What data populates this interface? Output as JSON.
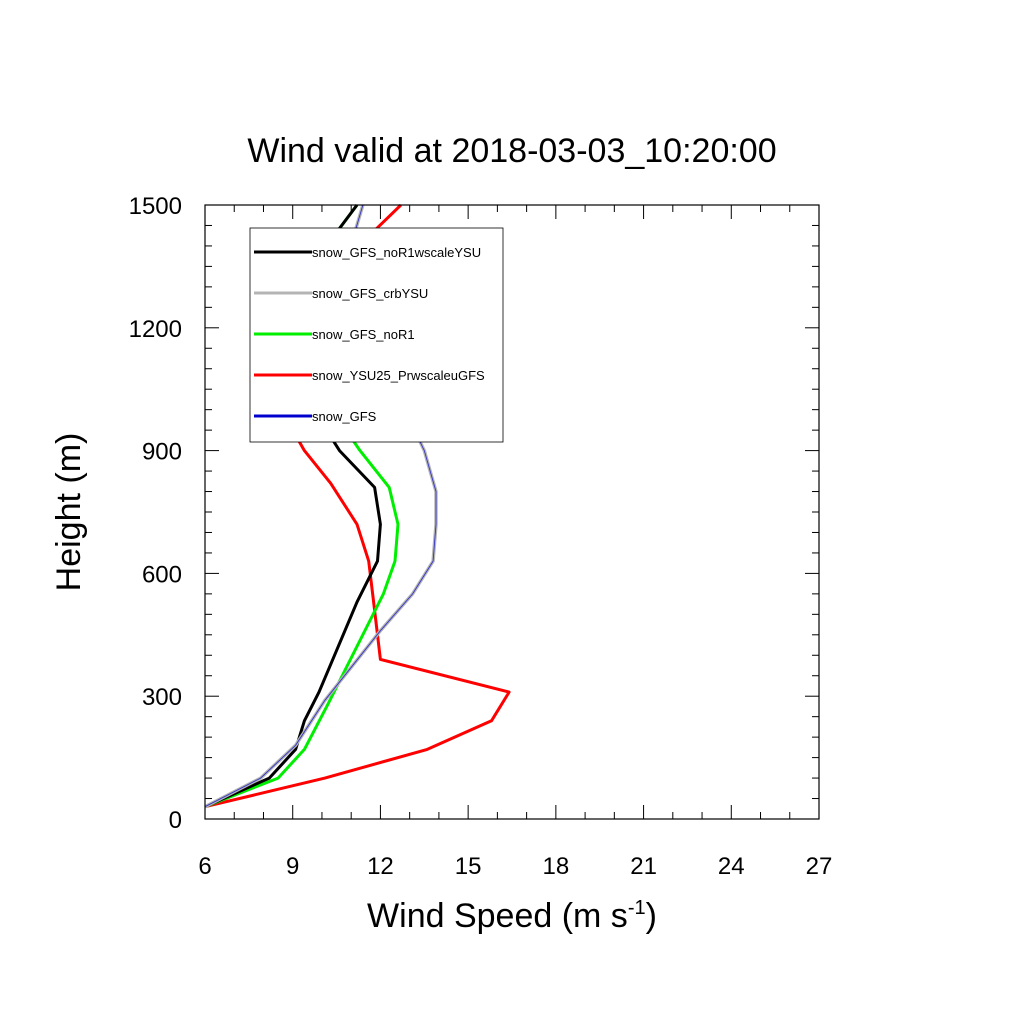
{
  "chart_data": {
    "type": "line",
    "title": "Wind valid at 2018-03-03_10:20:00",
    "xlabel": "Wind Speed (m s",
    "xlabel_superscript": "-1",
    "xlabel_suffix": ")",
    "ylabel": "Height (m)",
    "xlim": [
      6,
      27
    ],
    "ylim": [
      0,
      1500
    ],
    "x_ticks": [
      "6",
      "9",
      "12",
      "15",
      "18",
      "21",
      "24",
      "27"
    ],
    "y_ticks": [
      "0",
      "300",
      "600",
      "900",
      "1200",
      "1500"
    ],
    "grid": false,
    "legend_position": "top-left (inside plot)",
    "series": [
      {
        "name": "snow_GFS_noR1wscaleYSU",
        "color": "#000000",
        "points": [
          [
            6.0,
            30
          ],
          [
            8.2,
            100
          ],
          [
            9.1,
            170
          ],
          [
            9.4,
            240
          ],
          [
            9.9,
            310
          ],
          [
            11.2,
            530
          ],
          [
            11.9,
            630
          ],
          [
            12.0,
            720
          ],
          [
            11.8,
            810
          ],
          [
            10.6,
            900
          ],
          [
            9.0,
            1080
          ],
          [
            8.7,
            1190
          ],
          [
            9.0,
            1290
          ],
          [
            11.2,
            1500
          ]
        ]
      },
      {
        "name": "snow_GFS_crbYSU",
        "color": "#b4b4b4",
        "points": [
          [
            6.0,
            30
          ],
          [
            7.9,
            100
          ],
          [
            9.1,
            180
          ],
          [
            10.1,
            290
          ],
          [
            12.0,
            460
          ],
          [
            13.1,
            550
          ],
          [
            13.8,
            630
          ],
          [
            13.9,
            720
          ],
          [
            13.9,
            800
          ],
          [
            13.5,
            900
          ],
          [
            12.9,
            990
          ],
          [
            11.2,
            1120
          ],
          [
            10.5,
            1230
          ],
          [
            10.9,
            1380
          ],
          [
            11.4,
            1500
          ]
        ]
      },
      {
        "name": "snow_GFS_noR1",
        "color": "#00ee00",
        "points": [
          [
            6.0,
            30
          ],
          [
            8.5,
            100
          ],
          [
            9.4,
            170
          ],
          [
            10.2,
            280
          ],
          [
            12.1,
            550
          ],
          [
            12.5,
            630
          ],
          [
            12.6,
            720
          ],
          [
            12.3,
            810
          ],
          [
            11.3,
            900
          ],
          [
            9.2,
            1120
          ],
          [
            8.8,
            1190
          ],
          [
            9.0,
            1290
          ],
          [
            11.2,
            1500
          ]
        ]
      },
      {
        "name": "snow_YSU25_PrwscaleuGFS",
        "color": "#ff0000",
        "points": [
          [
            6.0,
            30
          ],
          [
            10.1,
            100
          ],
          [
            13.6,
            170
          ],
          [
            15.8,
            240
          ],
          [
            16.4,
            310
          ],
          [
            12.0,
            390
          ],
          [
            11.8,
            510
          ],
          [
            11.6,
            630
          ],
          [
            11.2,
            720
          ],
          [
            10.3,
            820
          ],
          [
            9.4,
            900
          ],
          [
            8.6,
            1000
          ],
          [
            8.3,
            1080
          ],
          [
            8.5,
            1190
          ],
          [
            10.1,
            1320
          ],
          [
            12.7,
            1500
          ]
        ]
      },
      {
        "name": "snow_GFS",
        "color": "#0000cc",
        "points": [
          [
            6.0,
            30
          ],
          [
            7.9,
            100
          ],
          [
            9.1,
            180
          ],
          [
            10.1,
            290
          ],
          [
            12.0,
            460
          ],
          [
            13.1,
            550
          ],
          [
            13.8,
            630
          ],
          [
            13.9,
            720
          ],
          [
            13.9,
            800
          ],
          [
            13.5,
            900
          ],
          [
            12.9,
            990
          ],
          [
            11.2,
            1120
          ],
          [
            10.5,
            1230
          ],
          [
            10.9,
            1380
          ],
          [
            11.4,
            1500
          ]
        ]
      }
    ]
  }
}
